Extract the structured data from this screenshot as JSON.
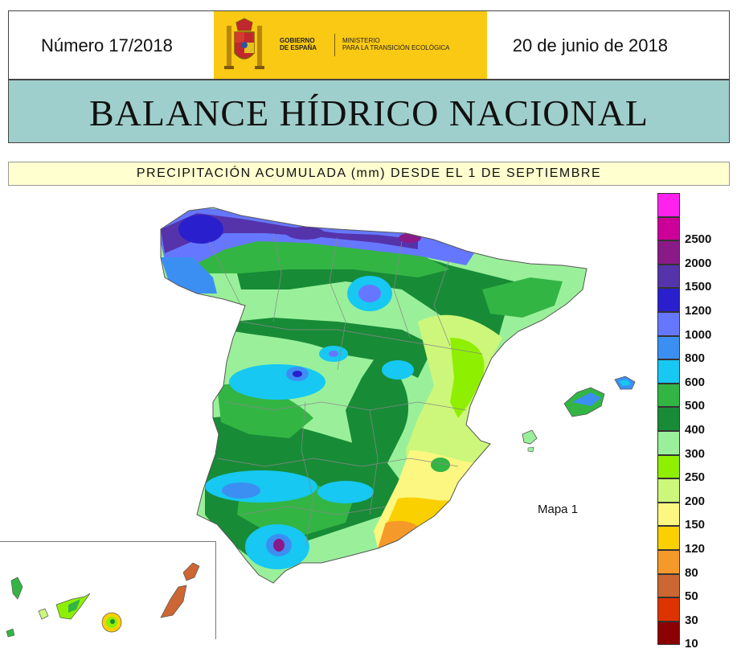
{
  "header": {
    "issue": "Número 17/2018",
    "date": "20 de junio de 2018",
    "gov_line1": "Gobierno",
    "gov_line2": "de España",
    "ministry_line1": "Ministerio",
    "ministry_line2": "para la Transición Ecológica"
  },
  "banner": {
    "title": "BALANCE HÍDRICO NACIONAL"
  },
  "subtitle": "PRECIPITACIÓN ACUMULADA (mm) DESDE EL 1 DE SEPTIEMBRE",
  "map": {
    "label": "Mapa 1"
  },
  "legend": {
    "items": [
      {
        "label": "",
        "color": "#ff22ee"
      },
      {
        "label": "2500",
        "color": "#cc0099"
      },
      {
        "label": "2000",
        "color": "#8a1a88"
      },
      {
        "label": "1500",
        "color": "#5533aa"
      },
      {
        "label": "1200",
        "color": "#2a1fcc"
      },
      {
        "label": "1000",
        "color": "#6677ff"
      },
      {
        "label": "800",
        "color": "#3c8ff2"
      },
      {
        "label": "600",
        "color": "#16c8f2"
      },
      {
        "label": "500",
        "color": "#33b544"
      },
      {
        "label": "400",
        "color": "#188b37"
      },
      {
        "label": "300",
        "color": "#9af09a"
      },
      {
        "label": "250",
        "color": "#8ef000"
      },
      {
        "label": "200",
        "color": "#cdf77a"
      },
      {
        "label": "150",
        "color": "#fbf780"
      },
      {
        "label": "120",
        "color": "#fbd000"
      },
      {
        "label": "80",
        "color": "#f59a2a"
      },
      {
        "label": "50",
        "color": "#cc6633"
      },
      {
        "label": "30",
        "color": "#dd3300"
      },
      {
        "label": "10",
        "color": "#8b0000"
      }
    ]
  }
}
